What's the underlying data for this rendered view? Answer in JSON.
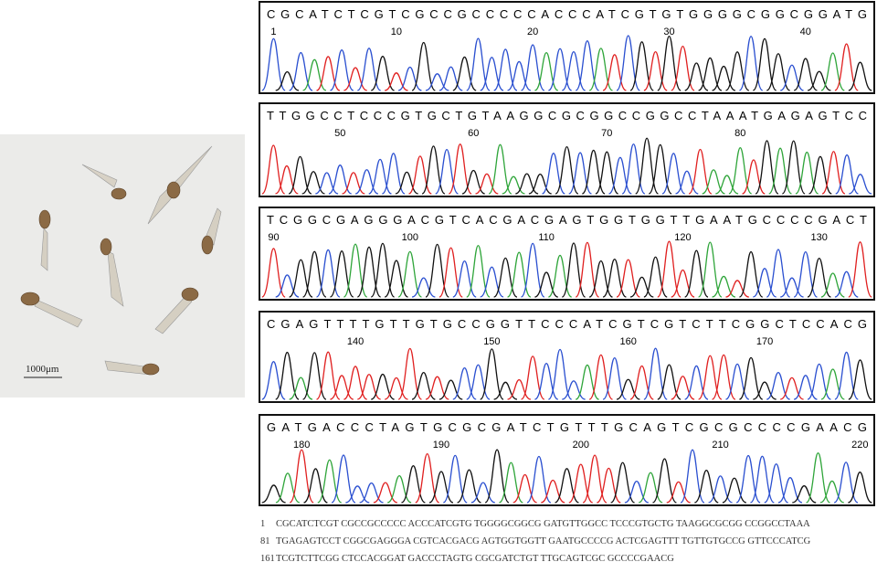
{
  "photo": {
    "scale_bar": "1000μm"
  },
  "panels": [
    {
      "sequence": "CGCATCTCGTCGCCGCCCCCACCCATCGTGTGGGGCGGCGGATG",
      "positions": [
        1,
        10,
        20,
        30,
        40
      ]
    },
    {
      "sequence": "TTGGCCTCCCGTGCTGTAAGGCGCGGCCGGCCTAAATGAGAGTCC",
      "positions": [
        50,
        60,
        70,
        80
      ]
    },
    {
      "sequence": "TCGGCGAGGGACGTCACGACGAGTGGTGGTTGAATGCCCCGACT",
      "positions": [
        90,
        100,
        110,
        120,
        130
      ]
    },
    {
      "sequence": "CGAGTTTTGTTGTGCCGGTTCCCATCGTCGTCTTCGGCTCCACG",
      "positions": [
        140,
        150,
        160,
        170
      ]
    },
    {
      "sequence": "GATGACCCTAGTGCGCGATCTGTTTGCAGTCGCGCCCCGAACG",
      "positions": [
        180,
        190,
        200,
        210,
        220
      ]
    }
  ],
  "sequence_lines": [
    {
      "number": 1,
      "text": "CGCATCTCGT CGCCGCCCCC ACCCATCGTG TGGGGCGGCG GATGTTGGCC TCCCGTGCTG TAAGGCGCGG CCGGCCTAAA"
    },
    {
      "number": 81,
      "text": "TGAGAGTCCT CGGCGAGGGA CGTCACGACG AGTGGTGGTT GAATGCCCCG ACTCGAGTTT TGTTGTGCCG GTTCCCATCG"
    },
    {
      "number": 161,
      "text": "TCGTCTTCGG CTCCACGGAT GACCCTAGTG CGCGATCTGT TTGCAGTCGC GCCCCGAACG"
    }
  ]
}
